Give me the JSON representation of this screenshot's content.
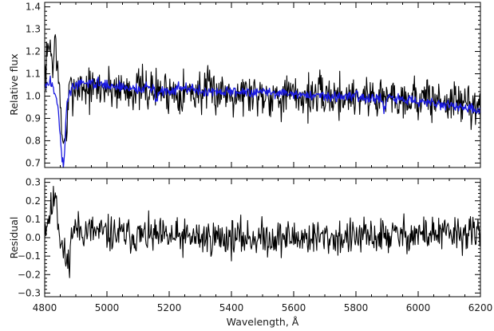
{
  "chart_data": [
    {
      "type": "line",
      "panel": "top",
      "ylabel": "Relative flux",
      "xlim": [
        4800,
        6200
      ],
      "ylim": [
        0.68,
        1.42
      ],
      "yticks": [
        "0.7",
        "0.8",
        "0.9",
        "1.0",
        "1.1",
        "1.2",
        "1.3",
        "1.4"
      ],
      "grid": false,
      "series": [
        {
          "color": "#000000",
          "noise": 0.075,
          "seed": 7,
          "points": [
            [
              4800,
              1.08
            ],
            [
              4810,
              1.19
            ],
            [
              4820,
              1.26
            ],
            [
              4825,
              1.09
            ],
            [
              4830,
              1.17
            ],
            [
              4835,
              1.32
            ],
            [
              4840,
              1.12
            ],
            [
              4845,
              1.05
            ],
            [
              4850,
              0.96
            ],
            [
              4855,
              0.84
            ],
            [
              4858,
              0.8
            ],
            [
              4862,
              0.79
            ],
            [
              4866,
              0.88
            ],
            [
              4870,
              0.78
            ],
            [
              4875,
              0.95
            ],
            [
              4880,
              1.02
            ],
            [
              4900,
              1.05
            ],
            [
              4950,
              1.03
            ],
            [
              5000,
              1.04
            ],
            [
              5200,
              1.02
            ],
            [
              5400,
              1.02
            ],
            [
              5600,
              1.0
            ],
            [
              5800,
              1.0
            ],
            [
              6000,
              0.99
            ],
            [
              6200,
              0.96
            ]
          ]
        },
        {
          "color": "#1a1ae0",
          "noise": 0.018,
          "seed": 3,
          "points": [
            [
              4800,
              1.04
            ],
            [
              4815,
              1.06
            ],
            [
              4825,
              1.06
            ],
            [
              4830,
              1.02
            ],
            [
              4840,
              0.98
            ],
            [
              4845,
              0.92
            ],
            [
              4850,
              0.82
            ],
            [
              4855,
              0.72
            ],
            [
              4860,
              0.69
            ],
            [
              4864,
              0.74
            ],
            [
              4868,
              0.88
            ],
            [
              4872,
              0.97
            ],
            [
              4880,
              1.02
            ],
            [
              4900,
              1.05
            ],
            [
              4950,
              1.06
            ],
            [
              5000,
              1.05
            ],
            [
              5050,
              1.04
            ],
            [
              5100,
              1.03
            ],
            [
              5150,
              1.04
            ],
            [
              5160,
              0.98
            ],
            [
              5170,
              1.02
            ],
            [
              5200,
              1.03
            ],
            [
              5250,
              1.04
            ],
            [
              5300,
              1.02
            ],
            [
              5400,
              1.02
            ],
            [
              5500,
              1.02
            ],
            [
              5600,
              1.01
            ],
            [
              5700,
              1.0
            ],
            [
              5800,
              1.0
            ],
            [
              5880,
              0.99
            ],
            [
              5890,
              0.93
            ],
            [
              5895,
              0.94
            ],
            [
              5900,
              0.99
            ],
            [
              6000,
              0.98
            ],
            [
              6100,
              0.96
            ],
            [
              6200,
              0.93
            ]
          ]
        }
      ]
    },
    {
      "type": "line",
      "panel": "bottom",
      "xlabel": "Wavelength, Å",
      "ylabel": "Residual",
      "xlim": [
        4800,
        6200
      ],
      "ylim": [
        -0.32,
        0.32
      ],
      "yticks": [
        "0.3",
        "0.2",
        "0.1",
        "0.0",
        "−0.1",
        "−0.2",
        "−0.3"
      ],
      "xticks": [
        "4800",
        "5000",
        "5200",
        "5400",
        "5600",
        "5800",
        "6000",
        "6200"
      ],
      "grid": false,
      "series": [
        {
          "color": "#000000",
          "noise": 0.075,
          "seed": 11,
          "points": [
            [
              4800,
              0.05
            ],
            [
              4815,
              0.12
            ],
            [
              4830,
              0.2
            ],
            [
              4835,
              0.3
            ],
            [
              4840,
              0.15
            ],
            [
              4850,
              0.0
            ],
            [
              4860,
              -0.08
            ],
            [
              4875,
              -0.15
            ],
            [
              4890,
              0.05
            ],
            [
              5000,
              0.02
            ],
            [
              5200,
              0.0
            ],
            [
              5400,
              0.0
            ],
            [
              5500,
              0.0
            ],
            [
              5600,
              0.0
            ],
            [
              5800,
              0.0
            ],
            [
              6000,
              0.02
            ],
            [
              6200,
              0.02
            ]
          ]
        }
      ]
    }
  ]
}
